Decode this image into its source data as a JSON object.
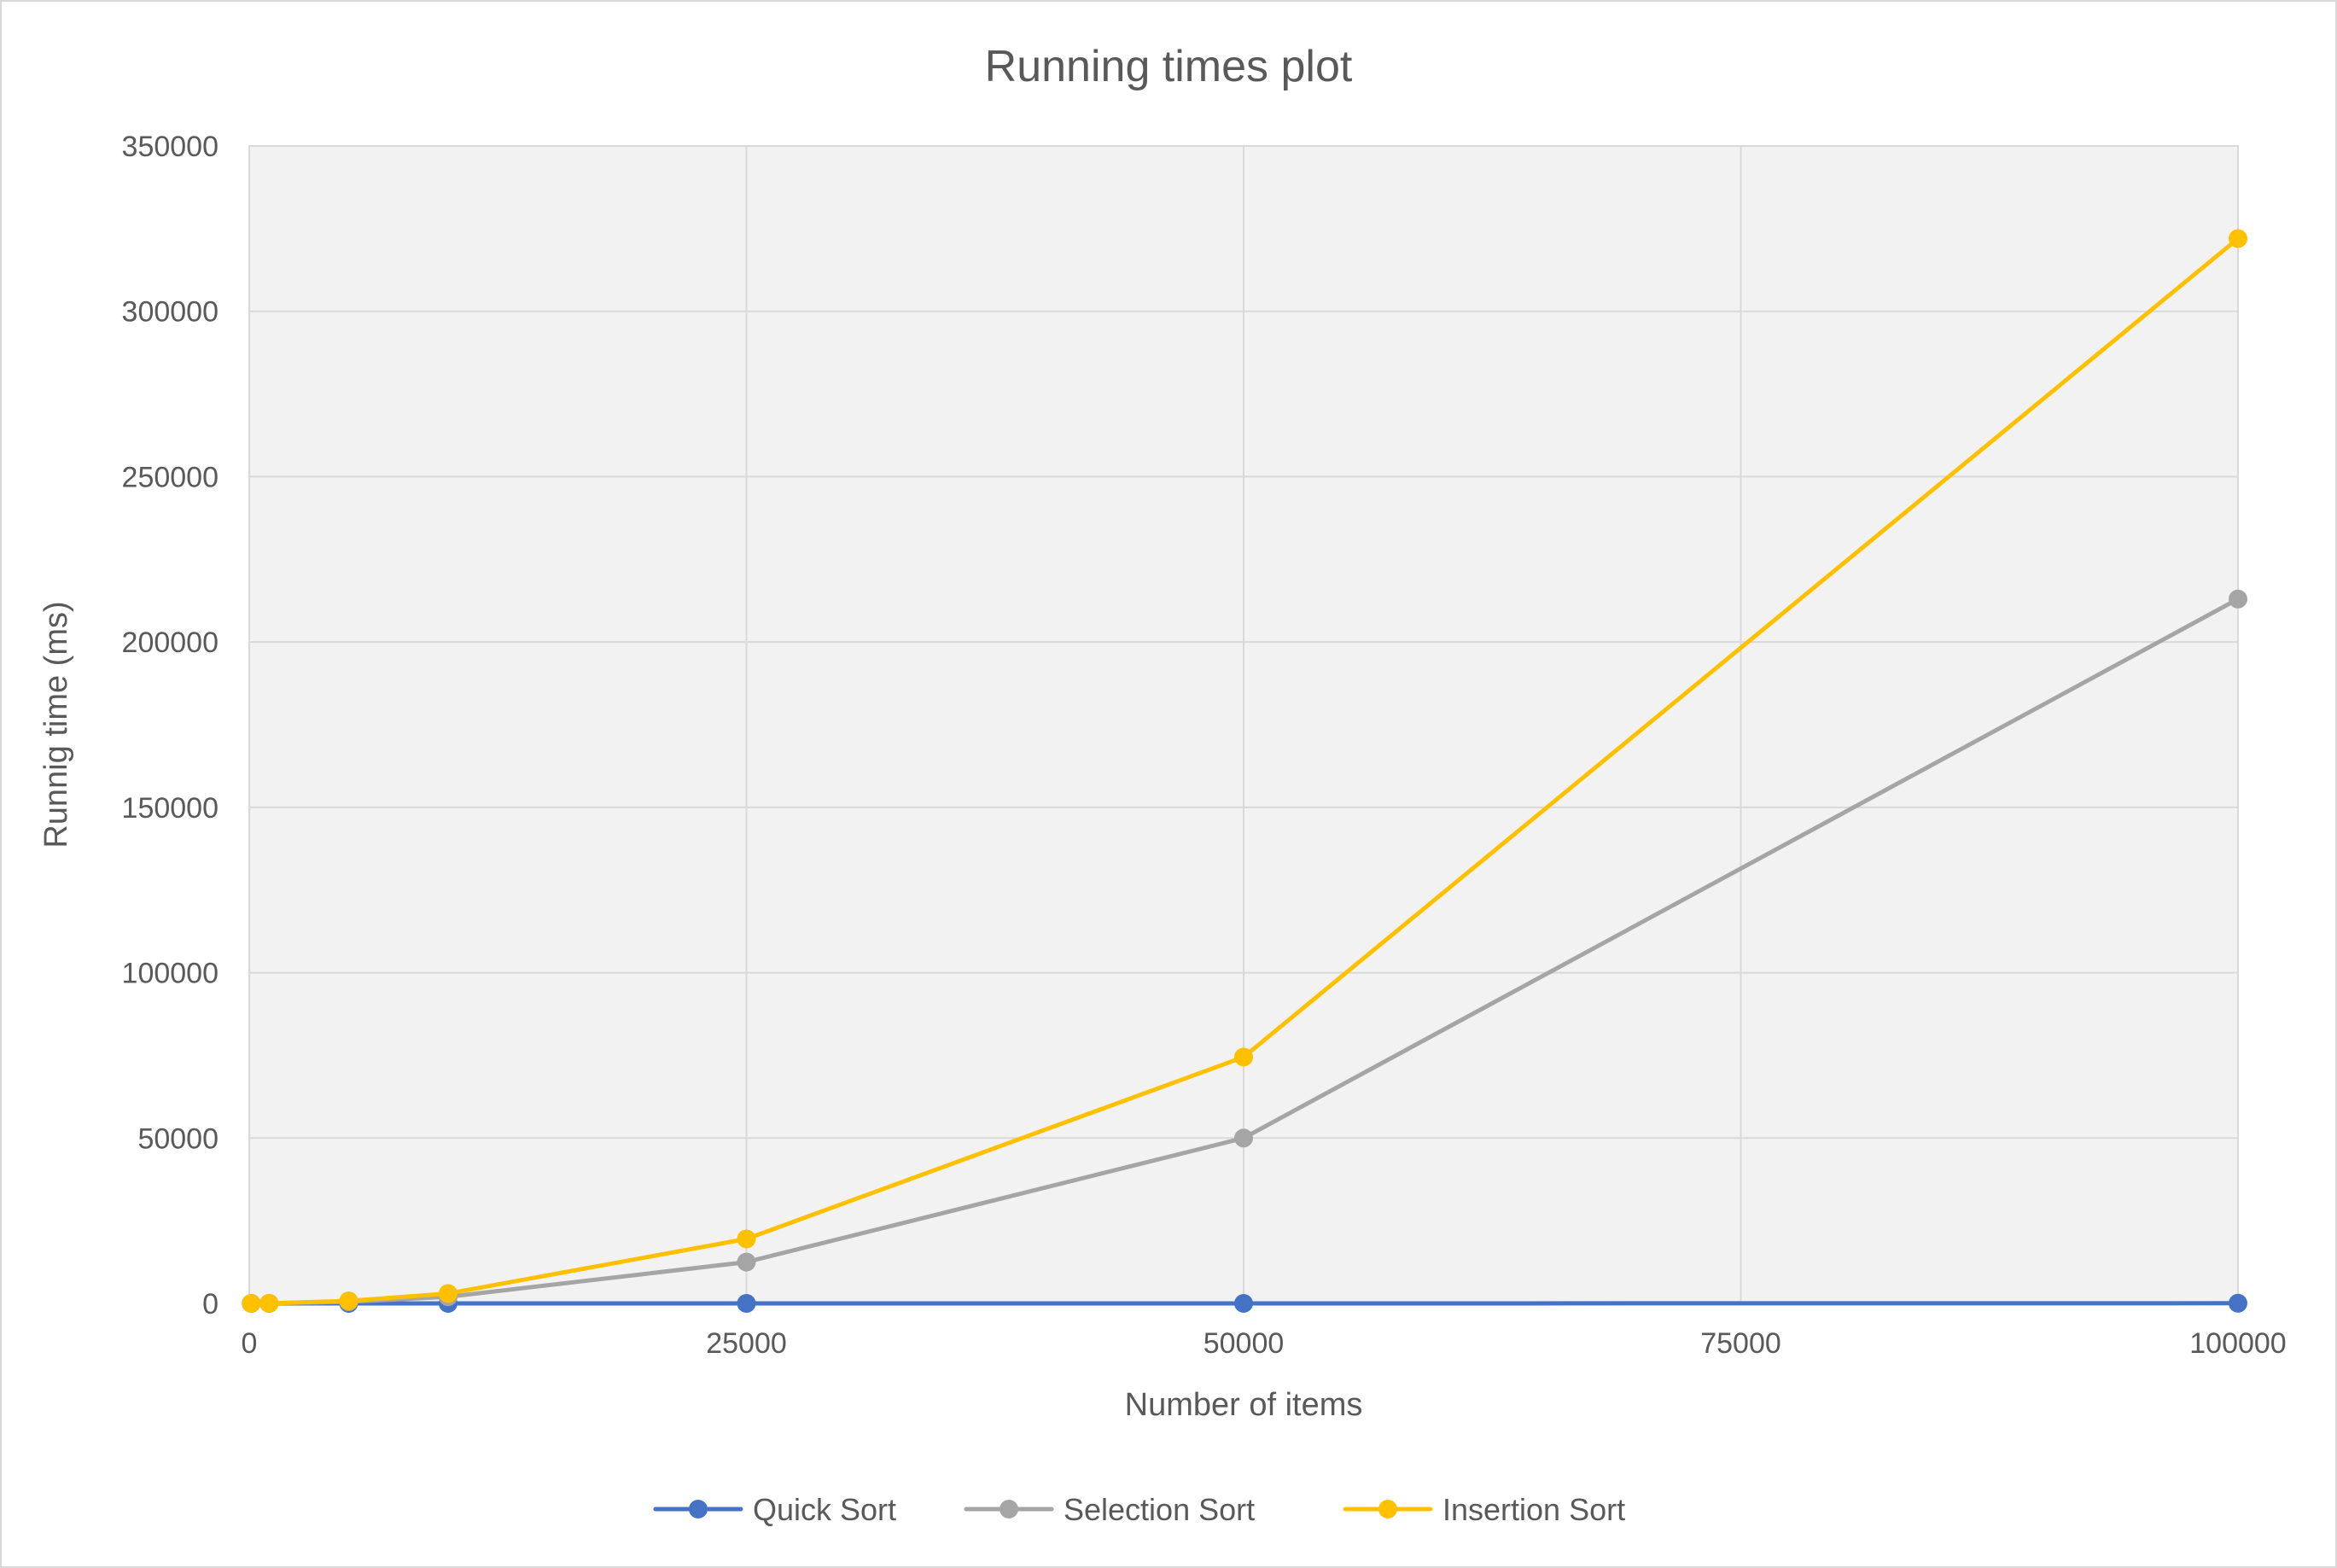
{
  "chart_data": {
    "type": "line",
    "title": "Running times plot",
    "xlabel": "Number of items",
    "ylabel": "Runnig time (ms)",
    "xlim": [
      0,
      100000
    ],
    "ylim": [
      0,
      350000
    ],
    "x_ticks": [
      0,
      25000,
      50000,
      75000,
      100000
    ],
    "y_ticks": [
      0,
      50000,
      100000,
      150000,
      200000,
      250000,
      300000,
      350000
    ],
    "x_tick_labels": [
      "0",
      "25000",
      "50000",
      "75000",
      "100000"
    ],
    "y_tick_labels": [
      "0",
      "50000",
      "100000",
      "150000",
      "200000",
      "250000",
      "300000",
      "350000"
    ],
    "grid": true,
    "legend_position": "bottom",
    "series": [
      {
        "name": "Quick Sort",
        "color": "#4472c4",
        "x": [
          100,
          1000,
          5000,
          10000,
          25000,
          50000,
          100000
        ],
        "y": [
          0,
          0,
          0,
          0,
          0,
          0,
          50
        ]
      },
      {
        "name": "Selection Sort",
        "color": "#a5a5a5",
        "x": [
          100,
          1000,
          5000,
          10000,
          25000,
          50000,
          100000
        ],
        "y": [
          0,
          20,
          500,
          2000,
          12500,
          50000,
          213000
        ]
      },
      {
        "name": "Insertion Sort",
        "color": "#ffc000",
        "x": [
          100,
          1000,
          5000,
          10000,
          25000,
          50000,
          100000
        ],
        "y": [
          0,
          30,
          750,
          3000,
          19500,
          74500,
          322000
        ]
      }
    ]
  }
}
